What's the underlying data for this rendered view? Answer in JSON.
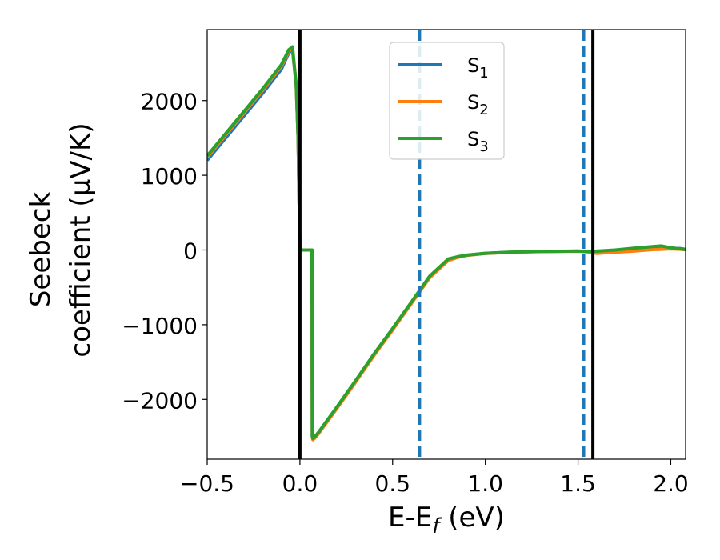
{
  "chart_data": {
    "type": "line",
    "xlabel": "E-E",
    "xlabel_sub": "f",
    "xlabel_unit": " (eV)",
    "ylabel_line1": "Seebeck",
    "ylabel_line2": "coefficient  (μV/K)",
    "xlim": [
      -0.5,
      2.08
    ],
    "ylim": [
      -2800,
      2950
    ],
    "x_ticks": [
      -0.5,
      0.0,
      0.5,
      1.0,
      1.5,
      2.0
    ],
    "x_tick_labels": [
      "−0.5",
      "0.0",
      "0.5",
      "1.0",
      "1.5",
      "2.0"
    ],
    "y_ticks": [
      -2000,
      -1000,
      0,
      1000,
      2000
    ],
    "y_tick_labels": [
      "−2000",
      "−1000",
      "0",
      "1000",
      "2000"
    ],
    "legend_position": "top-center",
    "series": [
      {
        "name": "S",
        "sub": "1",
        "color": "#1f77b4",
        "x": [
          -0.5,
          -0.4,
          -0.3,
          -0.2,
          -0.1,
          -0.06,
          -0.04,
          -0.02,
          -0.01,
          0.0,
          0.01,
          0.02,
          0.065,
          0.067,
          0.07,
          0.08,
          0.1,
          0.2,
          0.3,
          0.4,
          0.5,
          0.6,
          0.7,
          0.8,
          0.85,
          0.9,
          1.0,
          1.1,
          1.2,
          1.3,
          1.4,
          1.5,
          1.55,
          1.6,
          1.7,
          1.8,
          1.9,
          1.95,
          2.0,
          2.05,
          2.08
        ],
        "y": [
          1200,
          1500,
          1800,
          2100,
          2420,
          2640,
          2680,
          2200,
          1500,
          0,
          0,
          0,
          0,
          -2500,
          -2530,
          -2510,
          -2450,
          -2110,
          -1760,
          -1400,
          -1060,
          -710,
          -360,
          -130,
          -95,
          -70,
          -45,
          -33,
          -25,
          -20,
          -17,
          -15,
          -20,
          -25,
          -15,
          -5,
          10,
          20,
          25,
          20,
          10
        ]
      },
      {
        "name": "S",
        "sub": "2",
        "color": "#ff7f0e",
        "x": [
          -0.5,
          -0.4,
          -0.3,
          -0.2,
          -0.1,
          -0.06,
          -0.04,
          -0.02,
          -0.01,
          0.0,
          0.01,
          0.02,
          0.065,
          0.067,
          0.07,
          0.08,
          0.1,
          0.2,
          0.3,
          0.4,
          0.5,
          0.6,
          0.7,
          0.8,
          0.85,
          0.9,
          1.0,
          1.1,
          1.2,
          1.3,
          1.4,
          1.5,
          1.55,
          1.6,
          1.7,
          1.8,
          1.9,
          1.95,
          2.0,
          2.05,
          2.08
        ],
        "y": [
          1240,
          1540,
          1840,
          2140,
          2460,
          2660,
          2700,
          2200,
          1500,
          0,
          0,
          0,
          0,
          -2510,
          -2540,
          -2520,
          -2460,
          -2120,
          -1770,
          -1410,
          -1070,
          -720,
          -370,
          -140,
          -100,
          -72,
          -46,
          -34,
          -26,
          -21,
          -18,
          -16,
          -25,
          -45,
          -30,
          -15,
          5,
          10,
          15,
          10,
          5
        ]
      },
      {
        "name": "S",
        "sub": "3",
        "color": "#2ca02c",
        "x": [
          -0.5,
          -0.4,
          -0.3,
          -0.2,
          -0.1,
          -0.06,
          -0.04,
          -0.02,
          -0.01,
          0.0,
          0.01,
          0.02,
          0.065,
          0.067,
          0.07,
          0.08,
          0.1,
          0.2,
          0.3,
          0.4,
          0.5,
          0.6,
          0.7,
          0.8,
          0.85,
          0.9,
          1.0,
          1.1,
          1.2,
          1.3,
          1.4,
          1.5,
          1.55,
          1.6,
          1.7,
          1.8,
          1.9,
          1.95,
          2.0,
          2.05,
          2.08
        ],
        "y": [
          1260,
          1560,
          1860,
          2160,
          2480,
          2680,
          2720,
          2200,
          1500,
          0,
          0,
          0,
          0,
          -2490,
          -2520,
          -2500,
          -2440,
          -2100,
          -1750,
          -1390,
          -1050,
          -700,
          -350,
          -120,
          -90,
          -68,
          -44,
          -32,
          -24,
          -19,
          -16,
          -14,
          -20,
          -15,
          0,
          25,
          45,
          55,
          30,
          15,
          5
        ]
      }
    ],
    "vlines": [
      {
        "x": 0.0,
        "color": "#000000",
        "style": "solid"
      },
      {
        "x": 1.58,
        "color": "#000000",
        "style": "solid"
      },
      {
        "x": 0.645,
        "color": "#1f77b4",
        "style": "dashed"
      },
      {
        "x": 1.53,
        "color": "#1f77b4",
        "style": "dashed"
      }
    ]
  }
}
